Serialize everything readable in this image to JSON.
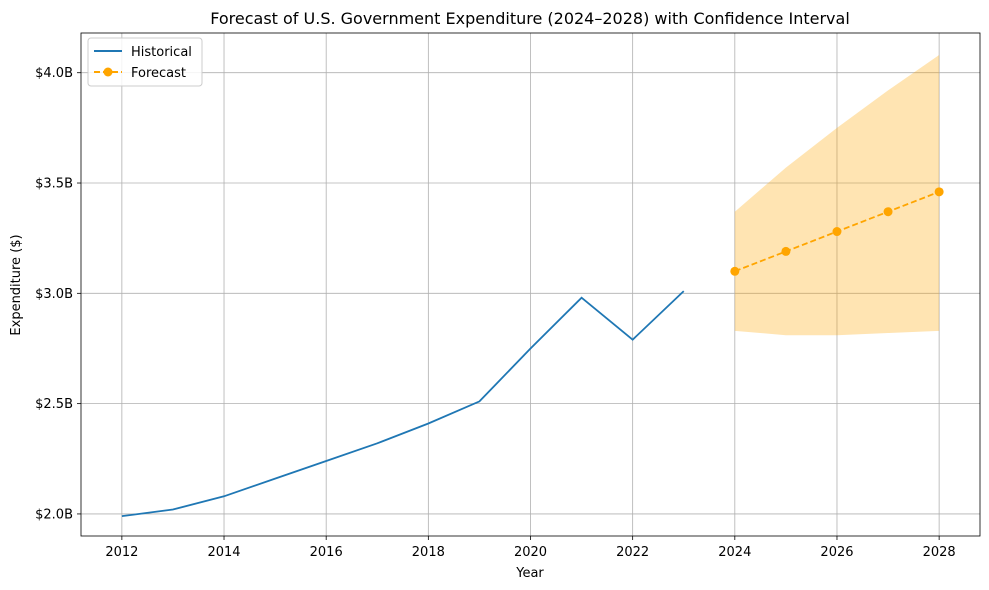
{
  "chart_data": {
    "type": "line",
    "title": "Forecast of U.S. Government Expenditure (2024–2028) with Confidence Interval",
    "xlabel": "Year",
    "ylabel": "Expenditure ($)",
    "xlim": [
      2011.2,
      2028.8
    ],
    "ylim": [
      1.9,
      4.18
    ],
    "x_ticks": [
      2012,
      2014,
      2016,
      2018,
      2020,
      2022,
      2024,
      2026,
      2028
    ],
    "x_tick_labels": [
      "2012",
      "2014",
      "2016",
      "2018",
      "2020",
      "2022",
      "2024",
      "2026",
      "2028"
    ],
    "y_ticks": [
      2.0,
      2.5,
      3.0,
      3.5,
      4.0
    ],
    "y_tick_labels": [
      "$2.0B",
      "$2.5B",
      "$3.0B",
      "$3.5B",
      "$4.0B"
    ],
    "grid": true,
    "legend_position": "top-left",
    "series": [
      {
        "name": "Historical",
        "style": "solid",
        "color": "#1f77b4",
        "x": [
          2012,
          2013,
          2014,
          2015,
          2016,
          2017,
          2018,
          2019,
          2020,
          2021,
          2022,
          2023
        ],
        "values": [
          1.99,
          2.02,
          2.08,
          2.16,
          2.24,
          2.32,
          2.41,
          2.51,
          2.75,
          2.98,
          2.79,
          3.01
        ]
      },
      {
        "name": "Forecast",
        "style": "dashed",
        "marker": "circle",
        "color": "#ffa500",
        "x": [
          2024,
          2025,
          2026,
          2027,
          2028
        ],
        "values": [
          3.1,
          3.19,
          3.28,
          3.37,
          3.46
        ]
      }
    ],
    "confidence_interval": {
      "color": "#ffa500",
      "x": [
        2024,
        2025,
        2026,
        2027,
        2028
      ],
      "lower": [
        2.83,
        2.81,
        2.81,
        2.82,
        2.83
      ],
      "upper": [
        3.37,
        3.57,
        3.75,
        3.92,
        4.08
      ]
    }
  }
}
